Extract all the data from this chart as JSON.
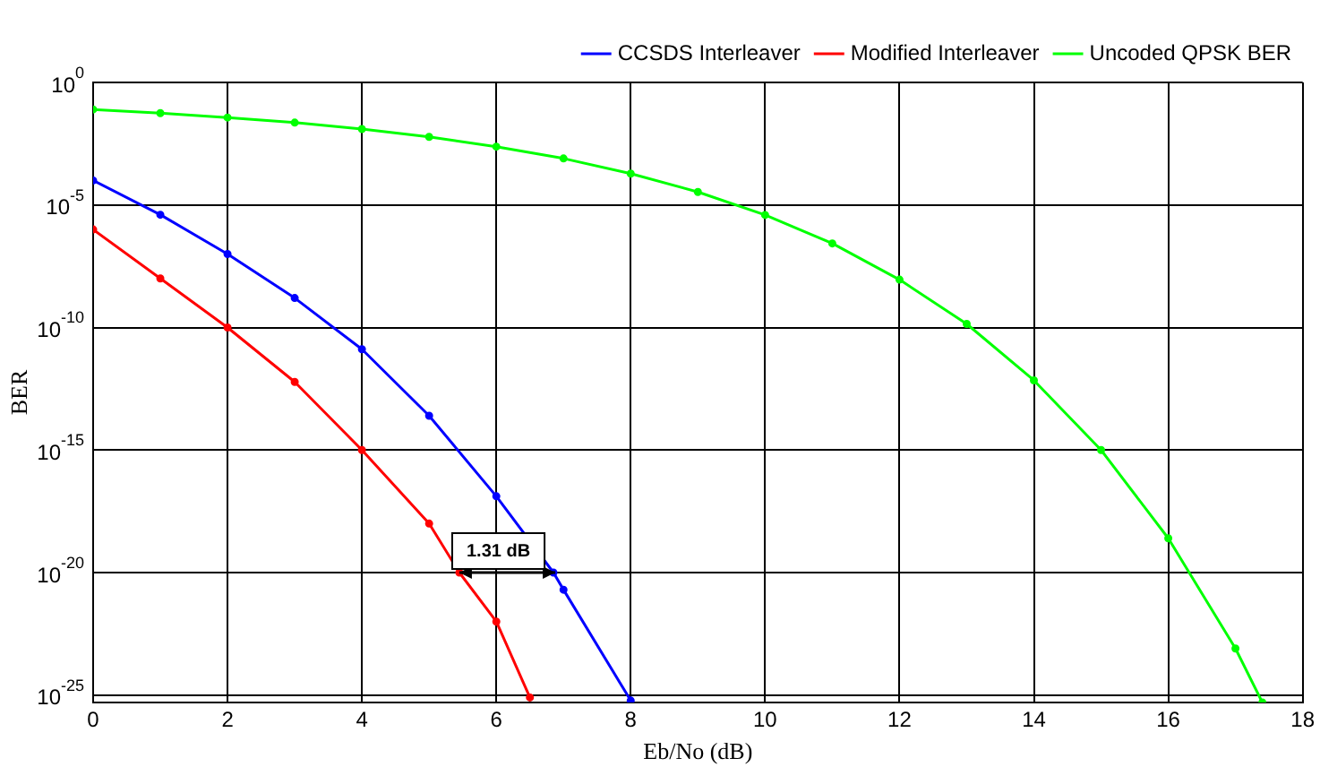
{
  "chart_data": {
    "type": "line",
    "xlabel": "Eb/No (dB)",
    "ylabel": "BER",
    "series": [
      {
        "name": "CCSDS Interleaver",
        "color": "#0000ff",
        "x": [
          0,
          1,
          2,
          3,
          4,
          5,
          6,
          6.85,
          7,
          8
        ],
        "values": [
          0.0001,
          4e-06,
          1e-07,
          1.6e-09,
          1.3e-11,
          2.5e-14,
          1.3e-17,
          1e-20,
          2e-21,
          6e-26
        ]
      },
      {
        "name": "Modified Interleaver",
        "color": "#ff0000",
        "x": [
          0,
          1,
          2,
          3,
          4,
          5,
          5.45,
          6,
          6.5
        ],
        "values": [
          1e-06,
          1e-08,
          1e-10,
          6e-13,
          1e-15,
          1e-18,
          1e-20,
          1e-22,
          8e-26
        ]
      },
      {
        "name": "Uncoded QPSK BER",
        "color": "#00ff00",
        "x": [
          0,
          1,
          2,
          3,
          4,
          5,
          6,
          7,
          8,
          9,
          10,
          11,
          12,
          13,
          14,
          15,
          16,
          17,
          17.4
        ],
        "values": [
          0.079,
          0.056,
          0.037,
          0.023,
          0.0125,
          0.006,
          0.0024,
          0.00079,
          0.00019,
          3.4e-05,
          3.9e-06,
          2.7e-07,
          9e-09,
          1.4e-10,
          7e-13,
          1e-15,
          2.5e-19,
          8e-24,
          5e-26
        ]
      }
    ],
    "xlim": [
      0,
      18
    ],
    "xticks": [
      0,
      2,
      4,
      6,
      8,
      10,
      12,
      14,
      16,
      18
    ],
    "ylim": [
      5e-26,
      1
    ],
    "yticks": [
      {
        "value": 1,
        "label": "10$^{0}$"
      },
      {
        "value": 1e-05,
        "label": "10$^{-5}$"
      },
      {
        "value": 1e-10,
        "label": "10$^{-10}$"
      },
      {
        "value": 1e-15,
        "label": "10$^{-15}$"
      },
      {
        "value": 1e-20,
        "label": "10$^{-20}$"
      },
      {
        "value": 1e-25,
        "label": "10$^{-25}$"
      }
    ],
    "log": "y",
    "grid": true,
    "legend": "top right",
    "marker": "circle",
    "line_style": "solid",
    "annotations": [
      {
        "text": "1.31 dB",
        "x": 5.45,
        "y": 1e-20
      }
    ]
  }
}
